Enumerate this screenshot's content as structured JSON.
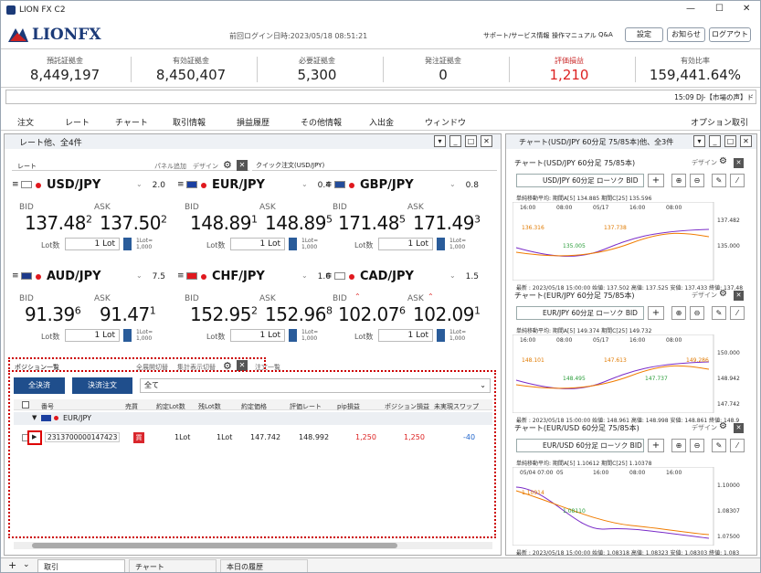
{
  "window": {
    "title": "LION FX C2",
    "min": "—",
    "max": "☐",
    "close": "✕"
  },
  "header": {
    "logo": "LIONFX",
    "last_login": "前回ログイン日時:2023/05/18 08:51:21",
    "links": [
      "サポート/サービス情報",
      "操作マニュアル",
      "Q&A"
    ],
    "buttons": [
      "設定",
      "お知らせ",
      "ログアウト"
    ]
  },
  "stats": [
    {
      "label": "預託証拠金",
      "value": "8,449,197"
    },
    {
      "label": "有効証拠金",
      "value": "8,450,407"
    },
    {
      "label": "必要証拠金",
      "value": "5,300"
    },
    {
      "label": "発注証拠金",
      "value": "0"
    },
    {
      "label": "評価損益",
      "value": "1,210"
    },
    {
      "label": "有効比率",
      "value": "159,441.64%"
    }
  ],
  "ticker": "15:09  DJ-【市場の声】ド",
  "menu": [
    "注文",
    "レート",
    "チャート",
    "取引情報",
    "損益履歴",
    "その他情報",
    "入出金",
    "ウィンドウ"
  ],
  "menu_right": "オプション取引",
  "rate_panel": {
    "title": "レート他、全4件",
    "tab": "レート",
    "panel_add": "パネル追加",
    "design": "デザイン",
    "quick": "クイック注文(USD/JPY)",
    "cards": [
      {
        "pair": "USD/JPY",
        "spread": "2.0",
        "bid_main": "137.48",
        "bid_sup": "2",
        "ask_main": "137.50",
        "ask_sup": "2",
        "lot": "1",
        "flag": "us"
      },
      {
        "pair": "EUR/JPY",
        "spread": "0.4",
        "bid_main": "148.89",
        "bid_sup": "1",
        "ask_main": "148.89",
        "ask_sup": "5",
        "lot": "1",
        "flag": "eu"
      },
      {
        "pair": "GBP/JPY",
        "spread": "0.8",
        "bid_main": "171.48",
        "bid_sup": "5",
        "ask_main": "171.49",
        "ask_sup": "3",
        "lot": "1",
        "flag": "gb"
      },
      {
        "pair": "AUD/JPY",
        "spread": "7.5",
        "bid_main": "91.39",
        "bid_sup": "6",
        "ask_main": "91.47",
        "ask_sup": "1",
        "lot": "1",
        "flag": "au"
      },
      {
        "pair": "CHF/JPY",
        "spread": "1.6",
        "bid_main": "152.95",
        "bid_sup": "2",
        "ask_main": "152.96",
        "ask_sup": "8",
        "lot": "1",
        "flag": "ch"
      },
      {
        "pair": "CAD/JPY",
        "spread": "1.5",
        "bid_main": "102.07",
        "bid_sup": "6",
        "ask_main": "102.09",
        "ask_sup": "1",
        "lot": "1",
        "flag": "ca"
      }
    ],
    "bid_label": "BID",
    "ask_label": "ASK",
    "lot_label": "Lot数",
    "lot_unit": "Lot",
    "lot_note": "1Lot=\n1,000"
  },
  "position": {
    "title": "ポジション一覧",
    "expand": "全展開切替",
    "total": "集計表示切替",
    "next_tab": "注文一覧",
    "btn_all": "全決済",
    "btn_settle": "決済注文",
    "filter": "全て",
    "cols": [
      "番号",
      "売買",
      "約定Lot数",
      "残Lot数",
      "約定価格",
      "評価レート",
      "pip損益",
      "ポジション損益",
      "未実現スワップ"
    ],
    "group": "EUR/JPY",
    "row": {
      "no": "2313700000147423",
      "side": "買",
      "lot": "1Lot",
      "remain": "1Lot",
      "price": "147.742",
      "rate": "148.992",
      "pip": "1,250",
      "pl": "1,250",
      "swap": "-40"
    }
  },
  "chart_panel": {
    "title": "チャート(USD/JPY 60分足 75/85本)他、全3件",
    "design": "デザイン"
  },
  "charts": [
    {
      "title": "チャート(USD/JPY 60分足 75/85本)",
      "pair": "USD/JPY 60分足 ローソク BID",
      "ind": "単純移動平均:  期間A[5] 134.885  期間C[25] 135.596",
      "times": [
        "16:00",
        "08:00",
        "05/17",
        "16:00",
        "08:00"
      ],
      "levels": [
        "137.482",
        "135.000"
      ],
      "marks": [
        "136.316",
        "135.005",
        "137.738"
      ],
      "foot": "最新 : 2023/05/18 15:00:00  始値: 137.502  高値: 137.525  安値: 137.433  終値: 137.48"
    },
    {
      "title": "チャート(EUR/JPY 60分足 75/85本)",
      "pair": "EUR/JPY 60分足 ローソク BID",
      "ind": "単純移動平均:  期間A[5] 149.374  期間C[25] 149.732",
      "times": [
        "16:00",
        "08:00",
        "05/17",
        "16:00",
        "08:00"
      ],
      "levels": [
        "150.000",
        "148.942",
        "147.742"
      ],
      "marks": [
        "148.101",
        "148.495",
        "147.613",
        "147.737",
        "149.286"
      ],
      "foot": "最新 : 2023/05/18 15:00:00  始値: 148.961  高値: 148.998  安値: 148.861  終値: 148.9"
    },
    {
      "title": "チャート(EUR/USD 60分足 75/85本)",
      "pair": "EUR/USD 60分足 ローソク BID",
      "ind": "単純移動平均:  期間A[5] 1.10612  期間C[25] 1.10378",
      "times": [
        "05/04 07:00",
        "05",
        "16:00",
        "08:00",
        "16:00"
      ],
      "levels": [
        "1.10000",
        "1.08307",
        "1.07500"
      ],
      "marks": [
        "1.10914",
        "1.08110"
      ],
      "foot": "最新 : 2023/05/18 15:00:00  始値: 1.08318  高値: 1.08323  安値: 1.08303  終値: 1.083"
    }
  ],
  "bottom_tabs": [
    "取引",
    "チャート",
    "本日の履歴"
  ]
}
